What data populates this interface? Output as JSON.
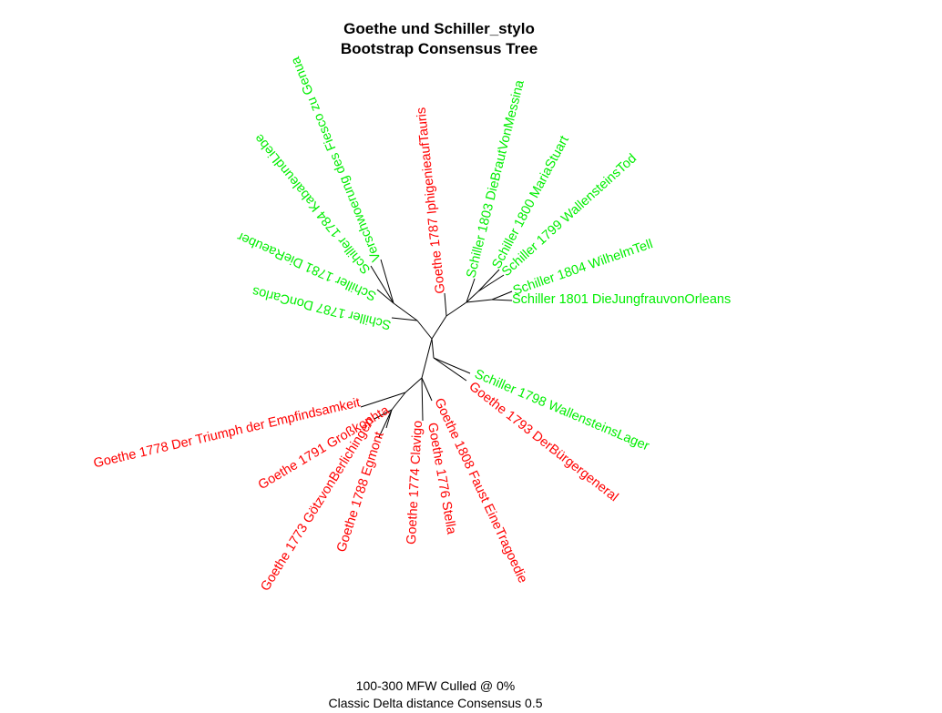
{
  "title_line1": "Goethe und Schiller_stylo",
  "title_line2": "Bootstrap Consensus Tree",
  "caption_line1": "100-300 MFW  Culled @ 0%",
  "caption_line2": "Classic Delta distance Consensus 0.5",
  "colors": {
    "goethe": "#ff0000",
    "schiller": "#00ee00",
    "edges": "#000000"
  },
  "leaves": {
    "iphigenie": "Goethe 1787 IphigenieaufTauris",
    "braut": "Schiller 1803 DieBrautVonMessina",
    "mariastuart": "Schiller 1800 MariaStuart",
    "wallensteinstod": "Schiller 1799 WallensteinsTod",
    "wilhelmtell": "Schiller 1804 WilhelmTell",
    "jungfrau": "Schiller 1801 DieJungfrauvonOrleans",
    "fiesco": "Verschwoerung des Fiesco zu Genua",
    "kabale": "Schiller 1784 KabaleundLiebe",
    "raeuber": "Schiller 1781 DieRaeuber",
    "doncarlos": "Schiller 1787 DonCarlos",
    "wallensteinslager": "Schiller 1798 WallensteinsLager",
    "buergergeneral": "Goethe 1793 DerBürgergeneral",
    "faust": "Goethe 1808 Faust EineTragoedie",
    "stella": "Goethe 1776 Stella",
    "clavigo": "Goethe 1774 Clavigo",
    "egmont": "Goethe 1788 Egmont",
    "goetz": "Goethe 1773 GötzvonBerlichingen",
    "grosskophta": "Goethe 1791 Großkophta",
    "empfindsamkeit": "Goethe 1778 Der Triumph der Empfindsamkeit"
  }
}
